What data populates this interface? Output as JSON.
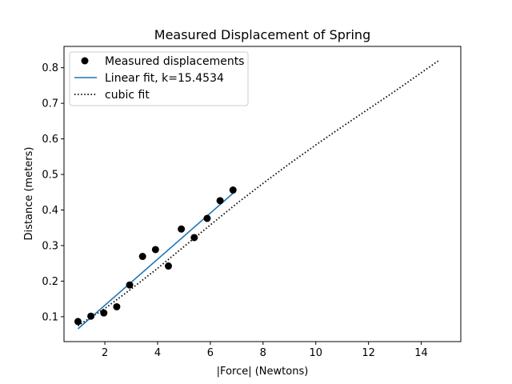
{
  "chart_data": {
    "type": "scatter",
    "title": "Measured Displacement of Spring",
    "xlabel": "|Force| (Newtons)",
    "ylabel": "Distance (meters)",
    "xlim": [
      0.45,
      15.5
    ],
    "ylim": [
      0.03,
      0.86
    ],
    "xticks": [
      2,
      4,
      6,
      8,
      10,
      12,
      14
    ],
    "yticks": [
      0.1,
      0.2,
      0.3,
      0.4,
      0.5,
      0.6,
      0.7,
      0.8
    ],
    "grid": false,
    "legend_position": "top-left",
    "series": [
      {
        "name": "Measured displacements",
        "kind": "scatter",
        "color": "#000000",
        "x": [
          0.98,
          1.47,
          1.96,
          2.45,
          2.94,
          3.43,
          3.92,
          4.41,
          4.9,
          5.39,
          5.88,
          6.37,
          6.86
        ],
        "y": [
          0.0865,
          0.1015,
          0.1106,
          0.1279,
          0.1892,
          0.2695,
          0.2888,
          0.2425,
          0.3465,
          0.3225,
          0.3764,
          0.4263,
          0.4562
        ]
      },
      {
        "name": "Linear fit, k=15.4534",
        "kind": "line",
        "color": "#1f77b4",
        "x": [
          0.98,
          6.86
        ],
        "y": [
          0.066,
          0.447
        ]
      },
      {
        "name": "cubic fit",
        "kind": "dotted-line",
        "color": "#000000",
        "x": [
          0.98,
          2,
          3,
          4,
          5,
          6,
          7,
          8,
          9,
          10,
          11,
          12,
          13,
          14,
          14.7
        ],
        "y": [
          0.075,
          0.123,
          0.178,
          0.236,
          0.297,
          0.358,
          0.418,
          0.475,
          0.53,
          0.583,
          0.634,
          0.684,
          0.734,
          0.786,
          0.822
        ]
      }
    ]
  }
}
